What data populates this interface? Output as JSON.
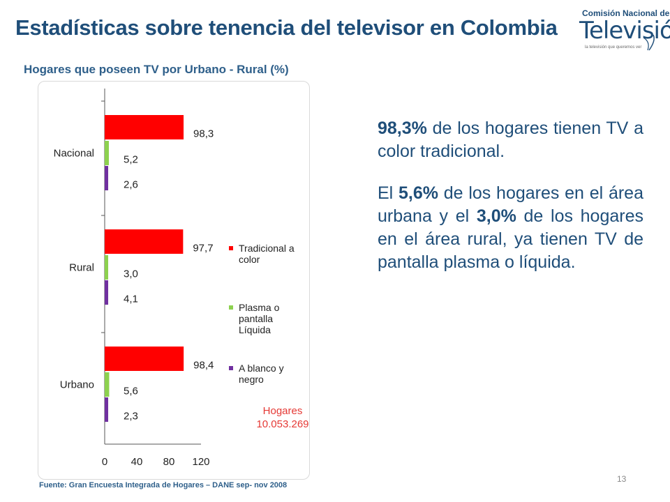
{
  "title": "Estadísticas sobre tenencia del televisor en Colombia",
  "logo": {
    "top_text": "Comisión Nacional de",
    "main_text": "Televisión",
    "tagline": "la televisión que queremos ver"
  },
  "subtitle": "Hogares que poseen TV por Urbano - Rural (%)",
  "chart_data": {
    "type": "bar",
    "orientation": "horizontal",
    "categories": [
      "Nacional",
      "Rural",
      "Urbano"
    ],
    "series": [
      {
        "name": "Tradicional a color",
        "color": "#ff0000",
        "values": [
          98.3,
          97.7,
          98.4
        ],
        "labels": [
          "98,3",
          "97,7",
          "98,4"
        ]
      },
      {
        "name": "Plasma o pantalla Líquida",
        "color": "#8dd14f",
        "values": [
          5.2,
          3.0,
          5.6
        ],
        "labels": [
          "5,2",
          "3,0",
          "5,6"
        ]
      },
      {
        "name": "A blanco y negro",
        "color": "#7030a0",
        "values": [
          2.6,
          4.1,
          2.3
        ],
        "labels": [
          "2,6",
          "4,1",
          "2,3"
        ]
      }
    ],
    "x_ticks": [
      "0",
      "40",
      "80",
      "120"
    ],
    "xlim": [
      0,
      120
    ],
    "legend_position": "right",
    "annotation": [
      "Hogares",
      "10.053.269"
    ],
    "grid": false
  },
  "body": {
    "p1_bold": "98,3%",
    "p1_rest": " de los hogares tienen TV a color tradicional.",
    "p2_a": "El ",
    "p2_b1": "5,6%",
    "p2_c": " de los hogares en el área urbana y el ",
    "p2_b2": "3,0%",
    "p2_d": " de los hogares en el área rural, ya tienen TV de pantalla plasma o líquida."
  },
  "source": "Fuente: Gran Encuesta Integrada de Hogares – DANE sep- nov 2008",
  "page_number": "13"
}
